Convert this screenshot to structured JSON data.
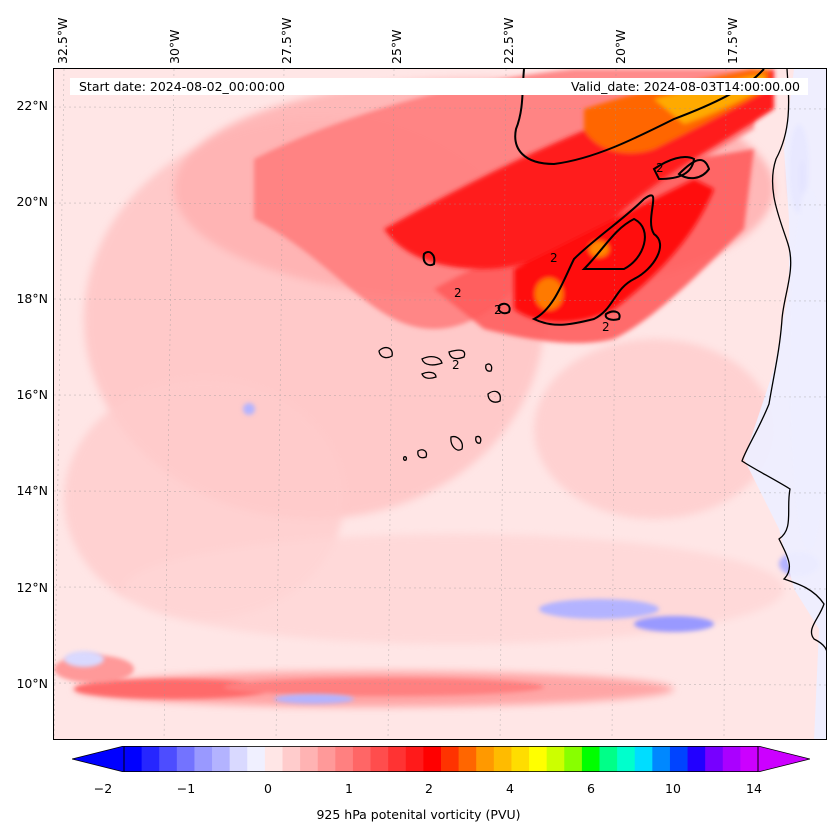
{
  "map": {
    "start_date": "Start date: 2024-08-02_00:00:00",
    "valid_date": "Valid_date: 2024-08-03T14:00:00.00",
    "lon_labels": [
      "32.5°W",
      "30°W",
      "27.5°W",
      "25°W",
      "22.5°W",
      "20°W",
      "17.5°W"
    ],
    "lat_labels": [
      "22°N",
      "20°N",
      "18°N",
      "16°N",
      "14°N",
      "12°N",
      "10°N"
    ],
    "contour_labels": [
      "2",
      "2",
      "2",
      "2",
      "2",
      "2"
    ],
    "colors": {
      "ocean_background": "#ffe6e6",
      "light_red": "#ffb3b3",
      "medium_red": "#ff7070",
      "red": "#ff1a1a",
      "orange": "#ff9900",
      "light_blue": "#b3b3ff",
      "blue": "#3333ff",
      "coastline": "#000000"
    }
  },
  "colorbar": {
    "tick_labels": [
      "−2",
      "−1",
      "0",
      "1",
      "2",
      "4",
      "6",
      "10",
      "14"
    ],
    "label": "925 hPa potenital vorticity (PVU)",
    "colors": [
      "#0000ff",
      "#2626ff",
      "#4d4dff",
      "#7373ff",
      "#9999ff",
      "#b3b3ff",
      "#d9d9ff",
      "#f0f0ff",
      "#ffe6e6",
      "#ffcccc",
      "#ffb3b3",
      "#ff9999",
      "#ff8080",
      "#ff6666",
      "#ff4d4d",
      "#ff3333",
      "#ff1a1a",
      "#ff0000",
      "#ff3300",
      "#ff6600",
      "#ff9900",
      "#ffbb00",
      "#ffdd00",
      "#ffff00",
      "#ccff00",
      "#88ff00",
      "#00ff00",
      "#00ff88",
      "#00ffcc",
      "#00ddff",
      "#0088ff",
      "#0044ff",
      "#2200ff",
      "#7700ff",
      "#aa00ff",
      "#cc00ff"
    ]
  }
}
